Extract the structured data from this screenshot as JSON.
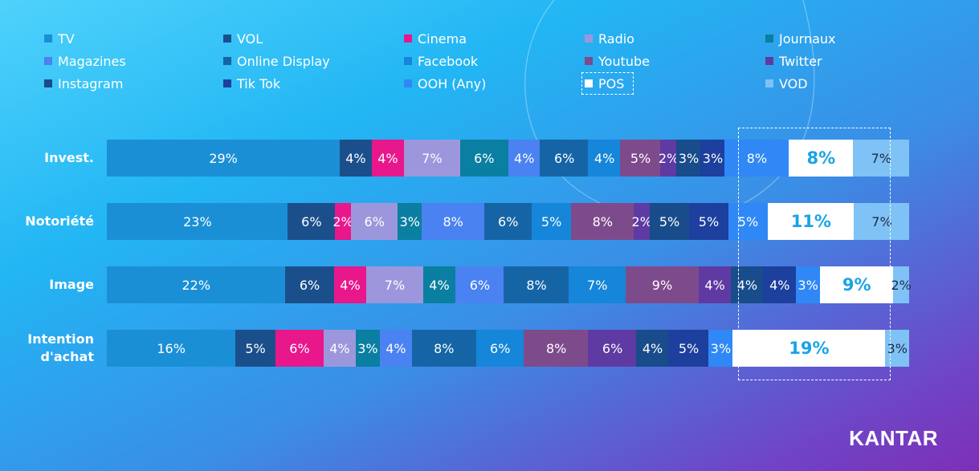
{
  "chart_data": {
    "type": "bar",
    "orientation": "horizontal",
    "stacked": true,
    "normalized": true,
    "title": "",
    "xlabel": "",
    "ylabel": "",
    "xlim": [
      0,
      100
    ],
    "legend_position": "top",
    "highlighted_series": "POS",
    "categories": [
      {
        "label": "Invest.",
        "lines": [
          "Invest."
        ]
      },
      {
        "label": "Notoriété",
        "lines": [
          "Notoriété"
        ]
      },
      {
        "label": "Image",
        "lines": [
          "Image"
        ]
      },
      {
        "label": "Intention d'achat",
        "lines": [
          "Intention",
          "d'achat"
        ]
      }
    ],
    "series": [
      {
        "name": "TV",
        "color": "#1b8fd6",
        "values": [
          29,
          23,
          22,
          16
        ],
        "labels": [
          "29%",
          "23%",
          "22%",
          "16%"
        ]
      },
      {
        "name": "VOL",
        "color": "#1b4f8c",
        "values": [
          4,
          6,
          6,
          5
        ],
        "labels": [
          "4%",
          "6%",
          "6%",
          "5%"
        ]
      },
      {
        "name": "Cinema",
        "color": "#e8178c",
        "values": [
          4,
          2,
          4,
          6
        ],
        "labels": [
          "4%",
          "2%",
          "4%",
          "6%"
        ]
      },
      {
        "name": "Radio",
        "color": "#9c97dc",
        "values": [
          7,
          6,
          7,
          4
        ],
        "labels": [
          "7%",
          "6%",
          "7%",
          "4%"
        ]
      },
      {
        "name": "Journaux",
        "color": "#0a7fa1",
        "values": [
          6,
          3,
          4,
          3
        ],
        "labels": [
          "6%",
          "3%",
          "4%",
          "3%"
        ]
      },
      {
        "name": "Magazines",
        "color": "#4a82f2",
        "values": [
          4,
          8,
          6,
          4
        ],
        "labels": [
          "4%",
          "8%",
          "6%",
          "4%"
        ]
      },
      {
        "name": "Online Display",
        "color": "#1565a6",
        "values": [
          6,
          6,
          8,
          8
        ],
        "labels": [
          "6%",
          "6%",
          "8%",
          "8%"
        ]
      },
      {
        "name": "Facebook",
        "color": "#1586d9",
        "values": [
          4,
          5,
          7,
          6
        ],
        "labels": [
          "4%",
          "5%",
          "7%",
          "6%"
        ]
      },
      {
        "name": "Youtube",
        "color": "#7d4b8c",
        "values": [
          5,
          8,
          9,
          8
        ],
        "labels": [
          "5%",
          "8%",
          "9%",
          "8%"
        ]
      },
      {
        "name": "Twitter",
        "color": "#5e3aa2",
        "values": [
          2,
          2,
          4,
          6
        ],
        "labels": [
          "2%",
          "2%",
          "4%",
          "6%"
        ]
      },
      {
        "name": "Instagram",
        "color": "#184c8a",
        "values": [
          3,
          5,
          4,
          4
        ],
        "labels": [
          "3%",
          "5%",
          "4%",
          "4%"
        ]
      },
      {
        "name": "Tik Tok",
        "color": "#1d3f9e",
        "values": [
          3,
          5,
          4,
          5
        ],
        "labels": [
          "3%",
          "5%",
          "4%",
          "5%"
        ]
      },
      {
        "name": "OOH (Any)",
        "color": "#2f88f5",
        "values": [
          8,
          5,
          3,
          3
        ],
        "labels": [
          "8%",
          "5%",
          "3%",
          "3%"
        ]
      },
      {
        "name": "POS",
        "color": "#ffffff",
        "values": [
          8,
          11,
          9,
          19
        ],
        "labels": [
          "8%",
          "11%",
          "9%",
          "19%"
        ]
      },
      {
        "name": "VOD",
        "color": "#7fc2f5",
        "values": [
          7,
          7,
          2,
          3
        ],
        "labels": [
          "7%",
          "7%",
          "2%",
          "3%"
        ]
      }
    ]
  },
  "legend": {
    "items": [
      "TV",
      "VOL",
      "Cinema",
      "Radio",
      "Journaux",
      "Magazines",
      "Online Display",
      "Facebook",
      "Youtube",
      "Twitter",
      "Instagram",
      "Tik Tok",
      "OOH (Any)",
      "POS",
      "VOD"
    ]
  },
  "branding": {
    "logo_text": "KANTAR"
  }
}
